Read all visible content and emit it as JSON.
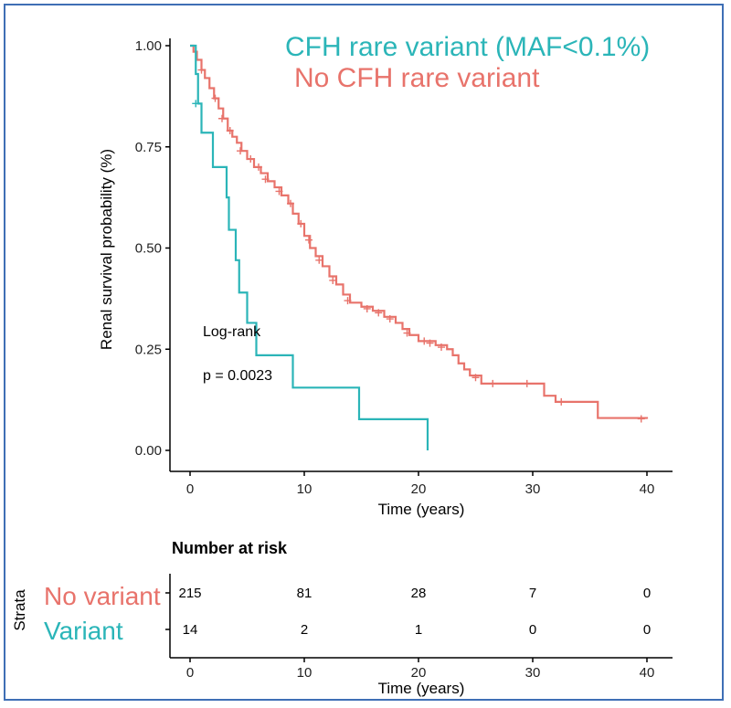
{
  "chart_data": {
    "type": "line",
    "subtype": "kaplan-meier",
    "ylabel": "Renal survival probability (%)",
    "xlabel": "Time (years)",
    "xlim": [
      0,
      40
    ],
    "ylim": [
      0,
      1
    ],
    "xticks": [
      0,
      10,
      20,
      30,
      40
    ],
    "yticks": [
      "0.00",
      "0.25",
      "0.50",
      "0.75",
      "1.00"
    ],
    "legend": {
      "placement": "top-right",
      "entries": [
        "CFH rare variant (MAF<0.1%)",
        "No CFH rare variant"
      ]
    },
    "annotation": [
      "Log-rank",
      "p = 0.0023"
    ],
    "series": [
      {
        "name": "No CFH rare variant",
        "color": "#e8736b",
        "steps": [
          [
            0,
            1.0
          ],
          [
            0.3,
            0.985
          ],
          [
            0.6,
            0.965
          ],
          [
            1.0,
            0.94
          ],
          [
            1.3,
            0.92
          ],
          [
            1.7,
            0.895
          ],
          [
            2.1,
            0.87
          ],
          [
            2.5,
            0.845
          ],
          [
            2.9,
            0.82
          ],
          [
            3.3,
            0.79
          ],
          [
            3.7,
            0.775
          ],
          [
            4.1,
            0.76
          ],
          [
            4.5,
            0.74
          ],
          [
            5.0,
            0.72
          ],
          [
            5.6,
            0.7
          ],
          [
            6.2,
            0.685
          ],
          [
            6.8,
            0.665
          ],
          [
            7.4,
            0.65
          ],
          [
            8.0,
            0.63
          ],
          [
            8.6,
            0.61
          ],
          [
            9.0,
            0.585
          ],
          [
            9.5,
            0.56
          ],
          [
            10.0,
            0.53
          ],
          [
            10.5,
            0.5
          ],
          [
            11.0,
            0.48
          ],
          [
            11.6,
            0.455
          ],
          [
            12.2,
            0.43
          ],
          [
            12.8,
            0.41
          ],
          [
            13.4,
            0.385
          ],
          [
            14.0,
            0.365
          ],
          [
            15.0,
            0.355
          ],
          [
            16.0,
            0.345
          ],
          [
            17.0,
            0.33
          ],
          [
            18.0,
            0.315
          ],
          [
            18.6,
            0.3
          ],
          [
            19.2,
            0.285
          ],
          [
            20.0,
            0.27
          ],
          [
            21.5,
            0.26
          ],
          [
            22.5,
            0.25
          ],
          [
            23.0,
            0.235
          ],
          [
            23.5,
            0.215
          ],
          [
            24.0,
            0.2
          ],
          [
            24.5,
            0.185
          ],
          [
            25.5,
            0.165
          ],
          [
            30.0,
            0.165
          ],
          [
            31.0,
            0.135
          ],
          [
            32.0,
            0.12
          ],
          [
            35.7,
            0.08
          ],
          [
            40.0,
            0.078
          ]
        ],
        "censored": [
          [
            1.0,
            0.94
          ],
          [
            2.2,
            0.87
          ],
          [
            2.8,
            0.82
          ],
          [
            3.5,
            0.79
          ],
          [
            4.4,
            0.74
          ],
          [
            5.3,
            0.72
          ],
          [
            6.0,
            0.7
          ],
          [
            6.6,
            0.67
          ],
          [
            7.8,
            0.64
          ],
          [
            8.8,
            0.61
          ],
          [
            9.7,
            0.56
          ],
          [
            10.4,
            0.52
          ],
          [
            11.3,
            0.47
          ],
          [
            12.5,
            0.42
          ],
          [
            13.8,
            0.37
          ],
          [
            15.5,
            0.35
          ],
          [
            16.5,
            0.34
          ],
          [
            17.5,
            0.325
          ],
          [
            19.0,
            0.29
          ],
          [
            20.5,
            0.27
          ],
          [
            21.0,
            0.265
          ],
          [
            22.0,
            0.255
          ],
          [
            25.0,
            0.18
          ],
          [
            26.5,
            0.165
          ],
          [
            29.5,
            0.165
          ],
          [
            32.5,
            0.12
          ],
          [
            39.5,
            0.078
          ]
        ]
      },
      {
        "name": "CFH rare variant (MAF<0.1%)",
        "color": "#2bb5b8",
        "steps": [
          [
            0,
            1.0
          ],
          [
            0.5,
            0.93
          ],
          [
            0.7,
            0.857
          ],
          [
            1.0,
            0.785
          ],
          [
            2.0,
            0.7
          ],
          [
            3.2,
            0.625
          ],
          [
            3.4,
            0.545
          ],
          [
            4.0,
            0.47
          ],
          [
            4.3,
            0.39
          ],
          [
            5.0,
            0.315
          ],
          [
            5.8,
            0.235
          ],
          [
            9.0,
            0.155
          ],
          [
            14.8,
            0.077
          ],
          [
            20.8,
            0.0
          ]
        ],
        "censored": [
          [
            0.5,
            0.857
          ]
        ]
      }
    ]
  },
  "risk_table": {
    "title": "Number at risk",
    "strata_label": "Strata",
    "xlabel": "Time (years)",
    "xticks": [
      0,
      10,
      20,
      30,
      40
    ],
    "rows": [
      {
        "label": "No variant",
        "color": "#e8736b",
        "values": [
          "215",
          "81",
          "28",
          "7",
          "0"
        ]
      },
      {
        "label": "Variant",
        "color": "#2bb5b8",
        "values": [
          "14",
          "2",
          "1",
          "0",
          "0"
        ]
      }
    ]
  }
}
